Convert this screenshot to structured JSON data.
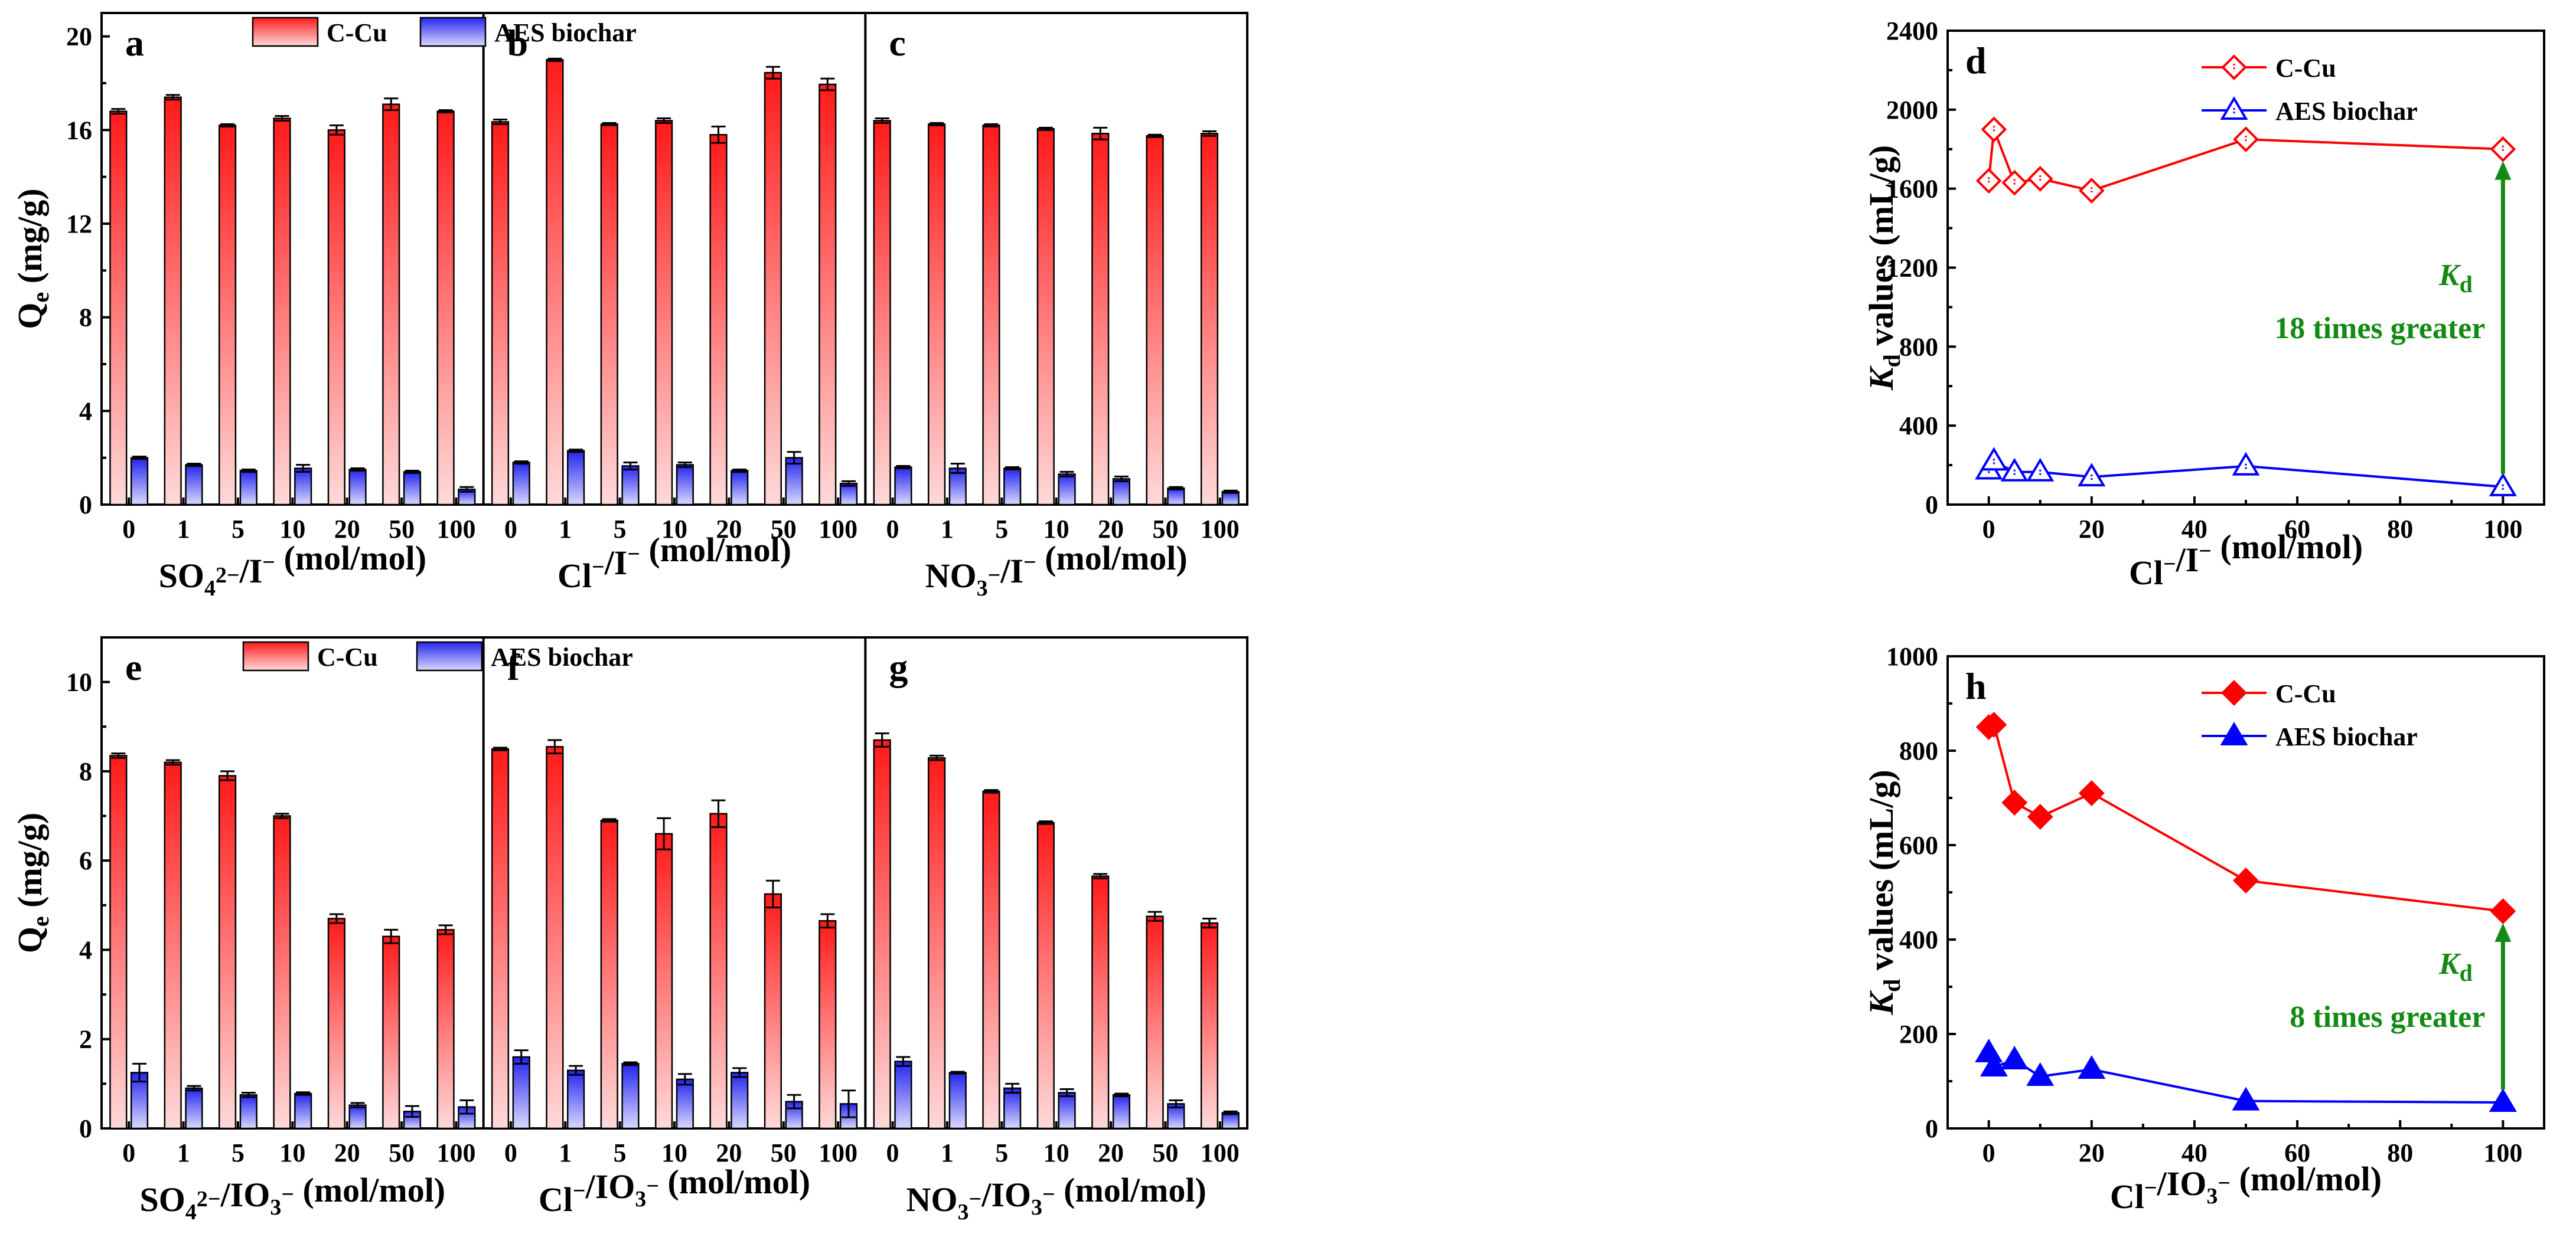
{
  "colors": {
    "ccu_top": "#ff1a1a",
    "ccu_bottom": "#ffd6d6",
    "aes_top": "#2626f0",
    "aes_bottom": "#d6d6ff",
    "line_red": "#ff0000",
    "line_blue": "#0000ff",
    "arrow": "#138a13"
  },
  "categories": [
    "0",
    "1",
    "5",
    "10",
    "20",
    "50",
    "100"
  ],
  "chart_data": [
    {
      "panel": "a",
      "type": "bar",
      "xlabel": "SO₄²⁻/I⁻ (mol/mol)",
      "ylabel": "Qe (mg/g)",
      "ylim": [
        0,
        21
      ],
      "yticks": [
        "0",
        "4",
        "8",
        "12",
        "16",
        "20"
      ],
      "series": [
        {
          "name": "C-Cu",
          "values": [
            16.8,
            17.4,
            16.2,
            16.5,
            16.0,
            17.1,
            16.8
          ],
          "errors": [
            0.1,
            0.1,
            0.05,
            0.1,
            0.2,
            0.25,
            0.05
          ]
        },
        {
          "name": "AES biochar",
          "values": [
            2.0,
            1.7,
            1.45,
            1.55,
            1.5,
            1.4,
            0.65
          ],
          "errors": [
            0.05,
            0.05,
            0.05,
            0.15,
            0.05,
            0.05,
            0.1
          ]
        }
      ],
      "legend": [
        "C-Cu",
        "AES biochar"
      ]
    },
    {
      "panel": "b",
      "type": "bar",
      "xlabel": "Cl⁻/I⁻ (mol/mol)",
      "ylim": [
        0,
        21
      ],
      "series": [
        {
          "name": "C-Cu",
          "values": [
            16.35,
            19.0,
            16.25,
            16.4,
            15.8,
            18.45,
            17.95
          ],
          "errors": [
            0.1,
            0.05,
            0.05,
            0.1,
            0.35,
            0.25,
            0.25
          ]
        },
        {
          "name": "AES biochar",
          "values": [
            1.8,
            2.3,
            1.65,
            1.7,
            1.45,
            2.0,
            0.9
          ],
          "errors": [
            0.05,
            0.05,
            0.15,
            0.1,
            0.05,
            0.25,
            0.1
          ]
        }
      ]
    },
    {
      "panel": "c",
      "type": "bar",
      "xlabel": "NO₃⁻/I⁻ (mol/mol)",
      "ylim": [
        0,
        21
      ],
      "series": [
        {
          "name": "C-Cu",
          "values": [
            16.4,
            16.25,
            16.2,
            16.05,
            15.85,
            15.75,
            15.85
          ],
          "errors": [
            0.1,
            0.05,
            0.05,
            0.05,
            0.25,
            0.05,
            0.1
          ]
        },
        {
          "name": "AES biochar",
          "values": [
            1.6,
            1.55,
            1.55,
            1.3,
            1.1,
            0.7,
            0.55
          ],
          "errors": [
            0.05,
            0.2,
            0.05,
            0.1,
            0.1,
            0.05,
            0.05
          ]
        }
      ]
    },
    {
      "panel": "d",
      "type": "line",
      "xlabel": "Cl⁻/I⁻ (mol/mol)",
      "ylabel": "Kd values (mL/g)",
      "xlim": [
        -8,
        108
      ],
      "ylim": [
        0,
        2400
      ],
      "xticks": [
        "0",
        "20",
        "40",
        "60",
        "80",
        "100"
      ],
      "yticks": [
        "0",
        "400",
        "800",
        "1200",
        "1600",
        "2000",
        "2400"
      ],
      "x": [
        0,
        1,
        5,
        10,
        20,
        50,
        100
      ],
      "series": [
        {
          "name": "C-Cu",
          "values": [
            1640,
            1900,
            1630,
            1650,
            1590,
            1850,
            1800
          ],
          "marker": "diamond-open"
        },
        {
          "name": "AES biochar",
          "values": [
            175,
            220,
            165,
            165,
            140,
            195,
            90
          ],
          "marker": "triangle-open"
        }
      ],
      "annotation": {
        "symbol": "K",
        "sub": "d",
        "text": "18 times greater"
      }
    },
    {
      "panel": "e",
      "type": "bar",
      "xlabel": "SO₄²⁻/IO₃⁻ (mol/mol)",
      "ylabel": "Qe (mg/g)",
      "ylim": [
        0,
        11
      ],
      "yticks": [
        "0",
        "2",
        "4",
        "6",
        "8",
        "10"
      ],
      "series": [
        {
          "name": "C-Cu",
          "values": [
            8.35,
            8.2,
            7.9,
            7.0,
            4.7,
            4.3,
            4.45
          ],
          "errors": [
            0.05,
            0.05,
            0.1,
            0.05,
            0.1,
            0.15,
            0.1
          ]
        },
        {
          "name": "AES biochar",
          "values": [
            1.25,
            0.9,
            0.75,
            0.78,
            0.52,
            0.38,
            0.48
          ],
          "errors": [
            0.2,
            0.05,
            0.05,
            0.03,
            0.05,
            0.12,
            0.15
          ]
        }
      ],
      "legend": [
        "C-Cu",
        "AES biochar"
      ]
    },
    {
      "panel": "f",
      "type": "bar",
      "xlabel": "Cl⁻/IO₃⁻ (mol/mol)",
      "ylim": [
        0,
        11
      ],
      "series": [
        {
          "name": "C-Cu",
          "values": [
            8.5,
            8.55,
            6.9,
            6.6,
            7.05,
            5.25,
            4.65
          ],
          "errors": [
            0.03,
            0.15,
            0.03,
            0.35,
            0.3,
            0.3,
            0.15
          ]
        },
        {
          "name": "AES biochar",
          "values": [
            1.6,
            1.3,
            1.45,
            1.1,
            1.25,
            0.6,
            0.55
          ],
          "errors": [
            0.15,
            0.1,
            0.03,
            0.12,
            0.1,
            0.15,
            0.3
          ]
        }
      ]
    },
    {
      "panel": "g",
      "type": "bar",
      "xlabel": "NO₃⁻/IO₃⁻ (mol/mol)",
      "ylim": [
        0,
        11
      ],
      "series": [
        {
          "name": "C-Cu",
          "values": [
            8.7,
            8.3,
            7.55,
            6.85,
            5.65,
            4.75,
            4.6
          ],
          "errors": [
            0.15,
            0.05,
            0.03,
            0.03,
            0.05,
            0.1,
            0.1
          ]
        },
        {
          "name": "AES biochar",
          "values": [
            1.5,
            1.25,
            0.9,
            0.8,
            0.75,
            0.55,
            0.35
          ],
          "errors": [
            0.1,
            0.02,
            0.1,
            0.08,
            0.03,
            0.08,
            0.03
          ]
        }
      ]
    },
    {
      "panel": "h",
      "type": "line",
      "xlabel": "Cl⁻/IO₃⁻ (mol/mol)",
      "ylabel": "Kd values (mL/g)",
      "xlim": [
        -8,
        108
      ],
      "ylim": [
        0,
        1000
      ],
      "xticks": [
        "0",
        "20",
        "40",
        "60",
        "80",
        "100"
      ],
      "yticks": [
        "0",
        "200",
        "400",
        "600",
        "800",
        "1000"
      ],
      "x": [
        0,
        1,
        5,
        10,
        20,
        50,
        100
      ],
      "series": [
        {
          "name": "C-Cu",
          "values": [
            850,
            855,
            690,
            660,
            710,
            525,
            460
          ],
          "marker": "diamond-filled-half"
        },
        {
          "name": "AES biochar",
          "values": [
            160,
            130,
            145,
            110,
            125,
            58,
            55
          ],
          "marker": "triangle-filled-half"
        }
      ],
      "annotation": {
        "symbol": "K",
        "sub": "d",
        "text": "8 times greater"
      }
    }
  ]
}
